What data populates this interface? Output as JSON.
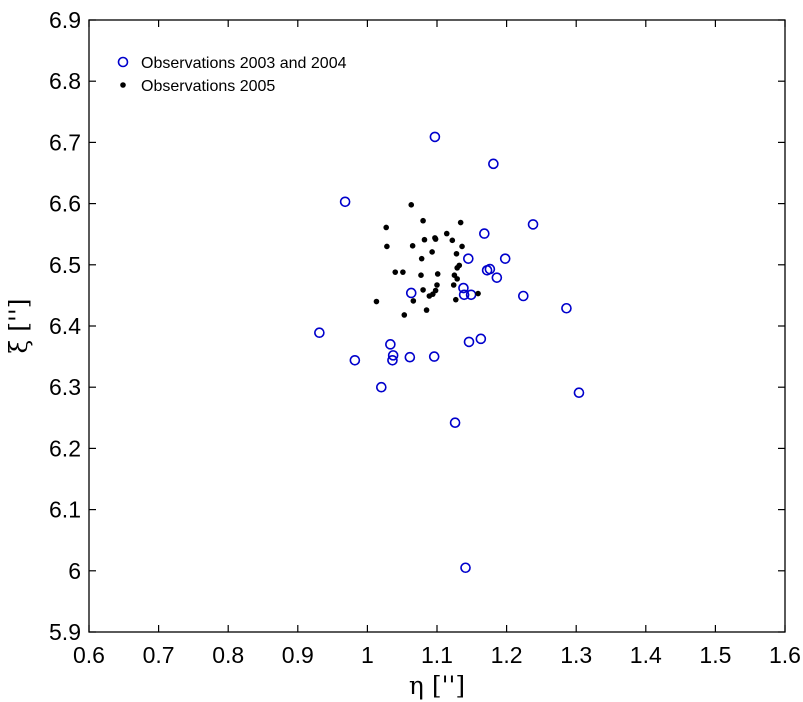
{
  "chart_data": {
    "type": "scatter",
    "xlabel": "η ['']",
    "ylabel": "ξ ['']",
    "xlim": [
      0.6,
      1.6
    ],
    "ylim": [
      5.9,
      6.9
    ],
    "x_ticks": [
      "0.6",
      "0.7",
      "0.8",
      "0.9",
      "1",
      "1.1",
      "1.2",
      "1.3",
      "1.4",
      "1.5",
      "1.6"
    ],
    "y_ticks": [
      "5.9",
      "6",
      "6.1",
      "6.2",
      "6.3",
      "6.4",
      "6.5",
      "6.6",
      "6.7",
      "6.8",
      "6.9"
    ],
    "grid": false,
    "legend_position": "top-left",
    "series": [
      {
        "name": "Observations 2003 and 2004",
        "marker": "open-circle",
        "color": "#0000cc",
        "points": [
          [
            1.097,
            6.709
          ],
          [
            1.181,
            6.665
          ],
          [
            0.968,
            6.603
          ],
          [
            1.238,
            6.566
          ],
          [
            1.168,
            6.551
          ],
          [
            1.145,
            6.51
          ],
          [
            1.198,
            6.51
          ],
          [
            1.172,
            6.491
          ],
          [
            1.176,
            6.493
          ],
          [
            1.186,
            6.479
          ],
          [
            1.138,
            6.462
          ],
          [
            1.063,
            6.454
          ],
          [
            1.139,
            6.451
          ],
          [
            1.149,
            6.451
          ],
          [
            1.224,
            6.449
          ],
          [
            1.286,
            6.429
          ],
          [
            0.931,
            6.389
          ],
          [
            1.163,
            6.379
          ],
          [
            1.146,
            6.374
          ],
          [
            1.033,
            6.37
          ],
          [
            1.037,
            6.352
          ],
          [
            1.036,
            6.344
          ],
          [
            0.982,
            6.344
          ],
          [
            1.061,
            6.349
          ],
          [
            1.096,
            6.35
          ],
          [
            1.02,
            6.3
          ],
          [
            1.304,
            6.291
          ],
          [
            1.126,
            6.242
          ],
          [
            1.141,
            6.005
          ]
        ]
      },
      {
        "name": "Observations 2005",
        "marker": "filled-dot",
        "color": "#000000",
        "points": [
          [
            1.063,
            6.598
          ],
          [
            1.08,
            6.572
          ],
          [
            1.134,
            6.569
          ],
          [
            1.027,
            6.561
          ],
          [
            1.114,
            6.551
          ],
          [
            1.082,
            6.541
          ],
          [
            1.097,
            6.544
          ],
          [
            1.098,
            6.542
          ],
          [
            1.122,
            6.54
          ],
          [
            1.065,
            6.531
          ],
          [
            1.028,
            6.53
          ],
          [
            1.136,
            6.53
          ],
          [
            1.093,
            6.521
          ],
          [
            1.128,
            6.518
          ],
          [
            1.078,
            6.51
          ],
          [
            1.132,
            6.499
          ],
          [
            1.129,
            6.495
          ],
          [
            1.04,
            6.488
          ],
          [
            1.051,
            6.488
          ],
          [
            1.077,
            6.483
          ],
          [
            1.101,
            6.485
          ],
          [
            1.125,
            6.483
          ],
          [
            1.129,
            6.477
          ],
          [
            1.1,
            6.467
          ],
          [
            1.124,
            6.467
          ],
          [
            1.098,
            6.458
          ],
          [
            1.08,
            6.459
          ],
          [
            1.089,
            6.449
          ],
          [
            1.094,
            6.452
          ],
          [
            1.159,
            6.453
          ],
          [
            1.127,
            6.443
          ],
          [
            1.013,
            6.44
          ],
          [
            1.066,
            6.441
          ],
          [
            1.085,
            6.426
          ],
          [
            1.053,
            6.418
          ]
        ]
      }
    ]
  }
}
